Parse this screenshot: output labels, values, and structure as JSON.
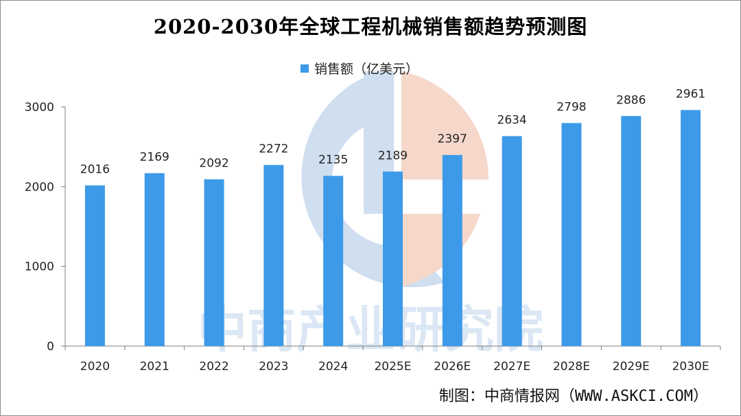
{
  "chart_data": {
    "type": "bar",
    "title": "2020-2030年全球工程机械销售额趋势预测图",
    "series": [
      {
        "name": "销售额（亿美元）",
        "values": [
          2016,
          2169,
          2092,
          2272,
          2135,
          2189,
          2397,
          2634,
          2798,
          2886,
          2961
        ]
      }
    ],
    "categories": [
      "2020",
      "2021",
      "2022",
      "2023",
      "2024",
      "2025E",
      "2026E",
      "2027E",
      "2028E",
      "2029E",
      "2030E"
    ],
    "data_labels": [
      "2016",
      "2169",
      "2092",
      "2272",
      "2135",
      "2189",
      "2397",
      "2634",
      "2798",
      "2886",
      "2961"
    ],
    "ylim": [
      0,
      3000
    ],
    "yticks": [
      0,
      1000,
      2000,
      3000
    ],
    "grid": false,
    "legend_position": "top-center",
    "xlabel": "",
    "ylabel": ""
  },
  "colors": {
    "bar": "#3d9ae8",
    "axis": "#7f7f7f",
    "watermark_blue": "#cfdff0",
    "watermark_orange": "#f6d8cb"
  },
  "footer": {
    "source": "制图：中商情报网（WWW.ASKCI.COM）"
  },
  "watermark": {
    "text": "中商产业研究院"
  }
}
